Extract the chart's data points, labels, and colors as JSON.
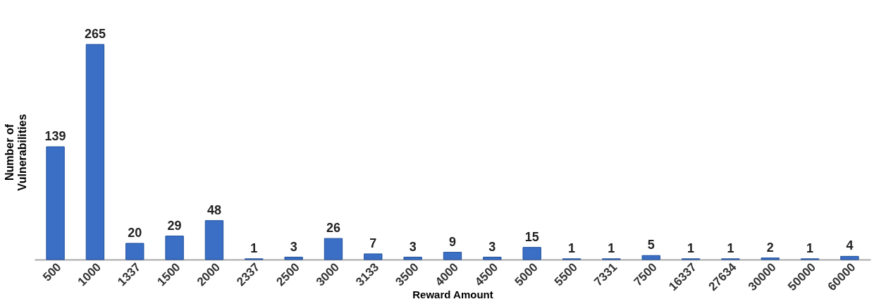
{
  "chart_data": {
    "type": "bar",
    "xlabel": "Reward Amount",
    "ylabel": "Number of Vulnerabilities",
    "categories": [
      "500",
      "1000",
      "1337",
      "1500",
      "2000",
      "2337",
      "2500",
      "3000",
      "3133",
      "3500",
      "4000",
      "4500",
      "5000",
      "5500",
      "7331",
      "7500",
      "16337",
      "27634",
      "30000",
      "50000",
      "60000"
    ],
    "values": [
      139,
      265,
      20,
      29,
      48,
      1,
      3,
      26,
      7,
      3,
      9,
      3,
      15,
      1,
      1,
      5,
      1,
      1,
      2,
      1,
      4
    ],
    "color": "#3b6fc6",
    "data_labels": true
  }
}
